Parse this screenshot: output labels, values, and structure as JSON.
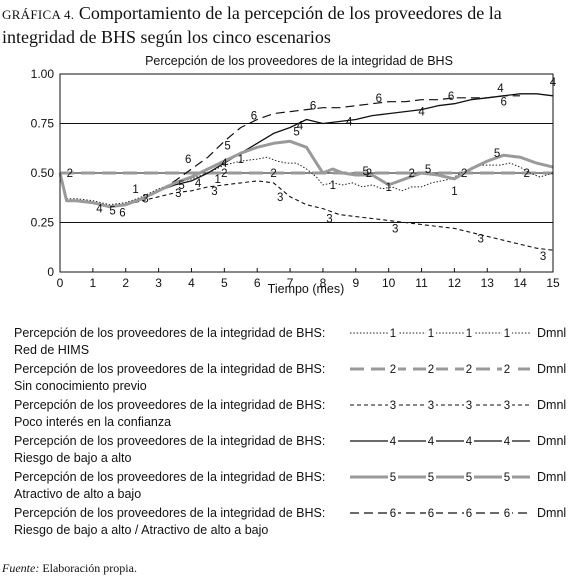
{
  "figure": {
    "label": "GRÁFICA 4.",
    "title": "Comportamiento de la percepción de los proveedores de la integridad de BHS según los cinco escenarios",
    "source_label": "Fuente:",
    "source_text": "Elaboración propia."
  },
  "chart_data": {
    "type": "line",
    "title": "Percepción de los proveedores de la  integridad de BHS",
    "xlabel": "Tiempo (mes)",
    "ylabel": "",
    "xlim": [
      0,
      15
    ],
    "ylim": [
      0,
      1
    ],
    "x_ticks": [
      "0",
      "1",
      "2",
      "3",
      "4",
      "5",
      "6",
      "7",
      "8",
      "9",
      "10",
      "11",
      "12",
      "13",
      "14",
      "15"
    ],
    "y_ticks": [
      "0",
      "0.25",
      "0.50",
      "0.75",
      "1.00"
    ],
    "grid": "horizontal",
    "legend_position": "bottom",
    "unit": "Dmnl",
    "series": [
      {
        "name": "Percepción de los proveedores de la  integridad de BHS: Red de HIMS",
        "legend_line1": "Percepción de los proveedores de la  integridad de BHS:",
        "legend_line2": "Red de HIMS",
        "marker": "1",
        "style": "dotted",
        "x": [
          0,
          0.2,
          0.5,
          1,
          1.5,
          2,
          2.5,
          3,
          3.5,
          4,
          4.5,
          5,
          5.5,
          6,
          6.3,
          6.6,
          6.9,
          7.2,
          7.5,
          7.8,
          8,
          8.3,
          8.6,
          8.9,
          9.2,
          9.5,
          9.8,
          10.1,
          10.4,
          10.7,
          11,
          11.3,
          11.6,
          11.9,
          12.2,
          12.5,
          12.8,
          13.1,
          13.4,
          13.7,
          14,
          14.3,
          14.6,
          15
        ],
        "y": [
          0.5,
          0.37,
          0.37,
          0.36,
          0.34,
          0.35,
          0.38,
          0.42,
          0.45,
          0.47,
          0.5,
          0.54,
          0.56,
          0.57,
          0.58,
          0.56,
          0.55,
          0.55,
          0.52,
          0.48,
          0.44,
          0.45,
          0.44,
          0.45,
          0.43,
          0.44,
          0.42,
          0.43,
          0.41,
          0.43,
          0.43,
          0.45,
          0.46,
          0.47,
          0.5,
          0.52,
          0.54,
          0.54,
          0.54,
          0.55,
          0.53,
          0.5,
          0.48,
          0.5
        ],
        "label_x": [
          2.3,
          4.8,
          5.5,
          8.3,
          10,
          12
        ],
        "label_y": [
          0.42,
          0.47,
          0.57,
          0.44,
          0.43,
          0.41
        ]
      },
      {
        "name": "Percepción de los proveedores de la  integridad de BHS: Sin conocimiento previo",
        "legend_line1": "Percepción de los proveedores de la  integridad de BHS:",
        "legend_line2": "Sin conocimiento previo",
        "marker": "2",
        "style": "long-dash",
        "x": [
          0,
          15
        ],
        "y": [
          0.5,
          0.5
        ],
        "label_x": [
          0.3,
          5,
          6.5,
          9.4,
          10.7,
          12.3,
          14.2
        ],
        "label_y": [
          0.5,
          0.5,
          0.5,
          0.5,
          0.5,
          0.5,
          0.5
        ]
      },
      {
        "name": "Percepción de los proveedores de la  integridad de BHS: Poco interés en la confianza",
        "legend_line1": "Percepción de los proveedores de la  integridad de BHS:",
        "legend_line2": "Poco interés en la confianza",
        "marker": "3",
        "style": "short-dash",
        "x": [
          0,
          0.2,
          0.5,
          1,
          1.5,
          2,
          2.5,
          3,
          3.5,
          4,
          4.5,
          5,
          5.5,
          6,
          6.5,
          7,
          7.5,
          8,
          8.5,
          9,
          9.5,
          10,
          10.5,
          11,
          11.5,
          12,
          12.5,
          13,
          13.5,
          14,
          14.5,
          15
        ],
        "y": [
          0.5,
          0.36,
          0.36,
          0.35,
          0.33,
          0.34,
          0.36,
          0.38,
          0.4,
          0.41,
          0.43,
          0.44,
          0.45,
          0.46,
          0.45,
          0.38,
          0.34,
          0.32,
          0.29,
          0.28,
          0.27,
          0.26,
          0.25,
          0.24,
          0.23,
          0.22,
          0.2,
          0.18,
          0.16,
          0.14,
          0.12,
          0.11
        ],
        "label_x": [
          2.6,
          3.6,
          4.7,
          6.7,
          8.2,
          10.2,
          12.8,
          14.7
        ],
        "label_y": [
          0.37,
          0.4,
          0.41,
          0.38,
          0.27,
          0.22,
          0.17,
          0.08
        ],
        "label_values": [
          "3",
          "3",
          "3",
          "3",
          "3",
          "3",
          "3",
          "3"
        ]
      },
      {
        "name": "Percepción de los proveedores de la  integridad de BHS: Riesgo de bajo a alto",
        "legend_line1": "Percepción de los proveedores de la  integridad de BHS:",
        "legend_line2": "Riesgo de bajo a alto",
        "marker": "4",
        "style": "solid",
        "x": [
          0,
          0.2,
          0.5,
          1,
          1.5,
          2,
          2.5,
          3,
          3.5,
          4,
          4.5,
          5,
          5.5,
          6,
          6.5,
          7,
          7.5,
          8,
          8.5,
          9,
          9.5,
          10,
          10.5,
          11,
          11.5,
          12,
          12.5,
          13,
          13.5,
          14,
          14.5,
          15
        ],
        "y": [
          0.5,
          0.36,
          0.36,
          0.35,
          0.33,
          0.34,
          0.37,
          0.41,
          0.44,
          0.46,
          0.5,
          0.55,
          0.6,
          0.65,
          0.7,
          0.73,
          0.77,
          0.75,
          0.76,
          0.77,
          0.79,
          0.8,
          0.81,
          0.82,
          0.84,
          0.85,
          0.87,
          0.88,
          0.89,
          0.9,
          0.9,
          0.89
        ],
        "label_x": [
          1.2,
          4.2,
          5,
          7.3,
          8.8,
          11,
          13.4,
          15
        ],
        "label_y": [
          0.32,
          0.45,
          0.55,
          0.74,
          0.76,
          0.81,
          0.93,
          0.96
        ]
      },
      {
        "name": "Percepción de los proveedores de la  integridad de BHS: Atractivo de alto a bajo",
        "legend_line1": "Percepción de los proveedores de la  integridad de BHS:",
        "legend_line2": "Atractivo de alto a bajo",
        "marker": "5",
        "style": "thick-solid",
        "x": [
          0,
          0.2,
          0.5,
          1,
          1.5,
          2,
          2.5,
          3,
          3.5,
          4,
          4.5,
          5,
          5.5,
          6,
          6.5,
          7,
          7.5,
          7.8,
          8,
          8.3,
          8.6,
          9,
          9.5,
          10,
          10.5,
          11,
          11.5,
          12,
          12.5,
          13,
          13.5,
          14,
          14.5,
          15
        ],
        "y": [
          0.5,
          0.36,
          0.36,
          0.35,
          0.33,
          0.34,
          0.37,
          0.41,
          0.45,
          0.48,
          0.52,
          0.56,
          0.6,
          0.63,
          0.65,
          0.66,
          0.63,
          0.55,
          0.5,
          0.52,
          0.5,
          0.49,
          0.49,
          0.44,
          0.47,
          0.5,
          0.49,
          0.47,
          0.52,
          0.56,
          0.59,
          0.58,
          0.55,
          0.53
        ],
        "label_x": [
          1.6,
          3.7,
          5.1,
          7.2,
          9.3,
          11.2,
          13.3
        ],
        "label_y": [
          0.31,
          0.44,
          0.64,
          0.71,
          0.51,
          0.52,
          0.6
        ]
      },
      {
        "name": "Percepción de los proveedores de la  integridad de BHS: Riesgo de bajo a alto / Atractivo de alto a bajo",
        "legend_line1": "Percepción de los proveedores de la  integridad de BHS:",
        "legend_line2": "Riesgo de bajo a alto / Atractivo de alto a bajo",
        "marker": "6",
        "style": "long-dash",
        "x": [
          0,
          0.2,
          0.5,
          1,
          1.5,
          2,
          2.5,
          3,
          3.5,
          4,
          4.5,
          5,
          5.5,
          6,
          6.5,
          7,
          7.5,
          8,
          8.5,
          9,
          9.5,
          10,
          10.5,
          11,
          11.5,
          12,
          12.5,
          13,
          13.5,
          14
        ],
        "y": [
          0.5,
          0.36,
          0.36,
          0.35,
          0.33,
          0.34,
          0.37,
          0.41,
          0.46,
          0.52,
          0.58,
          0.66,
          0.73,
          0.77,
          0.8,
          0.81,
          0.82,
          0.83,
          0.83,
          0.84,
          0.85,
          0.86,
          0.86,
          0.87,
          0.87,
          0.88,
          0.88,
          0.88,
          0.89,
          0.89
        ],
        "label_x": [
          1.9,
          3.9,
          5.9,
          7.7,
          9.7,
          11.9,
          13.5
        ],
        "label_y": [
          0.3,
          0.57,
          0.79,
          0.84,
          0.88,
          0.89,
          0.86
        ]
      }
    ]
  }
}
